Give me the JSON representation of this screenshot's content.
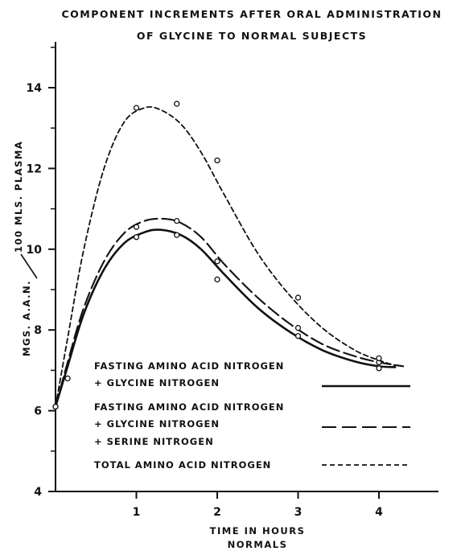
{
  "chart_data": {
    "type": "line",
    "title_line1": "COMPONENT INCREMENTS AFTER ORAL ADMINISTRATION",
    "title_line2": "OF GLYCINE TO NORMAL SUBJECTS",
    "ylabel": "MGS. A.A.N./100 MLS. PLASMA",
    "ylabel_part1": "MGS. A.A.N.",
    "ylabel_part2": "100 MLS. PLASMA",
    "xlabel_line1": "TIME IN HOURS",
    "xlabel_line2": "NORMALS",
    "xlim": [
      0,
      4.75
    ],
    "ylim": [
      4,
      15.2
    ],
    "x_ticks": [
      1,
      2,
      3,
      4
    ],
    "y_ticks": [
      4,
      6,
      8,
      10,
      12,
      14
    ],
    "grid": false,
    "series": [
      {
        "name": "FASTING AMINO ACID NITROGEN + GLYCINE NITROGEN",
        "legend_lines": [
          "FASTING AMINO ACID NITROGEN",
          "+ GLYCINE NITROGEN"
        ],
        "style": "solid",
        "points": [
          [
            0,
            6.1
          ],
          [
            1,
            10.3
          ],
          [
            1.5,
            10.35
          ],
          [
            2,
            9.25
          ],
          [
            3,
            7.85
          ],
          [
            4,
            7.05
          ]
        ],
        "curve": [
          [
            0,
            6.1
          ],
          [
            0.15,
            7.1
          ],
          [
            0.35,
            8.4
          ],
          [
            0.6,
            9.5
          ],
          [
            0.85,
            10.15
          ],
          [
            1.1,
            10.42
          ],
          [
            1.3,
            10.48
          ],
          [
            1.55,
            10.35
          ],
          [
            1.8,
            10.0
          ],
          [
            2.1,
            9.35
          ],
          [
            2.5,
            8.55
          ],
          [
            2.9,
            7.95
          ],
          [
            3.3,
            7.5
          ],
          [
            3.7,
            7.22
          ],
          [
            4.0,
            7.1
          ],
          [
            4.2,
            7.08
          ]
        ]
      },
      {
        "name": "FASTING AMINO ACID NITROGEN + GLYCINE NITROGEN + SERINE NITROGEN",
        "legend_lines": [
          "FASTING AMINO ACID NITROGEN",
          "+ GLYCINE NITROGEN",
          "+ SERINE NITROGEN"
        ],
        "style": "long-dash",
        "points": [
          [
            0,
            6.1
          ],
          [
            1,
            10.55
          ],
          [
            1.5,
            10.7
          ],
          [
            2,
            9.7
          ],
          [
            3,
            8.05
          ],
          [
            4,
            7.2
          ]
        ],
        "curve": [
          [
            0,
            6.1
          ],
          [
            0.15,
            7.2
          ],
          [
            0.35,
            8.55
          ],
          [
            0.6,
            9.7
          ],
          [
            0.85,
            10.4
          ],
          [
            1.1,
            10.7
          ],
          [
            1.35,
            10.75
          ],
          [
            1.55,
            10.65
          ],
          [
            1.8,
            10.3
          ],
          [
            2.1,
            9.6
          ],
          [
            2.5,
            8.8
          ],
          [
            2.9,
            8.15
          ],
          [
            3.3,
            7.65
          ],
          [
            3.7,
            7.35
          ],
          [
            4.0,
            7.2
          ],
          [
            4.3,
            7.1
          ]
        ]
      },
      {
        "name": "TOTAL AMINO ACID NITROGEN",
        "legend_lines": [
          "TOTAL AMINO ACID NITROGEN"
        ],
        "style": "short-dash",
        "points": [
          [
            0,
            6.1
          ],
          [
            0.15,
            6.8
          ],
          [
            1,
            13.5
          ],
          [
            1.5,
            13.6
          ],
          [
            2,
            12.2
          ],
          [
            3,
            8.8
          ],
          [
            4,
            7.3
          ]
        ],
        "curve": [
          [
            0,
            6.1
          ],
          [
            0.15,
            7.8
          ],
          [
            0.35,
            10.0
          ],
          [
            0.6,
            12.0
          ],
          [
            0.85,
            13.15
          ],
          [
            1.1,
            13.5
          ],
          [
            1.3,
            13.45
          ],
          [
            1.55,
            13.1
          ],
          [
            1.8,
            12.4
          ],
          [
            2.1,
            11.3
          ],
          [
            2.5,
            9.9
          ],
          [
            2.9,
            8.85
          ],
          [
            3.3,
            8.05
          ],
          [
            3.7,
            7.5
          ],
          [
            4.0,
            7.25
          ],
          [
            4.2,
            7.12
          ]
        ]
      }
    ]
  }
}
